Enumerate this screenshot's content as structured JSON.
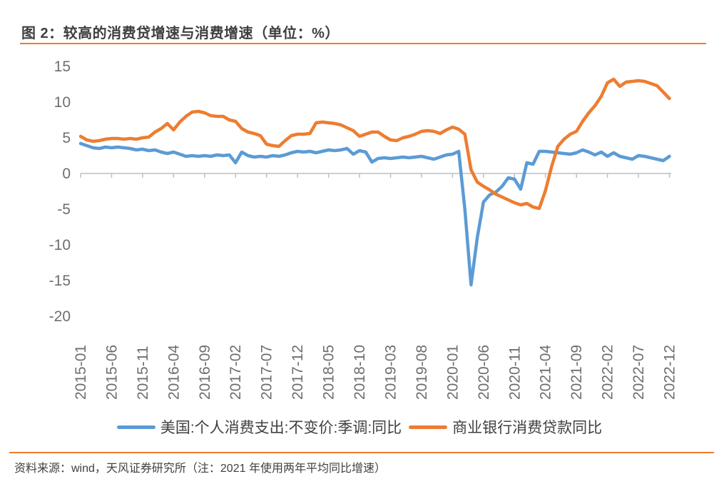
{
  "header": {
    "title": "图 2：较高的消费贷增速与消费增速（单位：%）"
  },
  "footer": {
    "source": "资料来源：wind，天风证券研究所（注：2021 年使用两年平均同比增速）"
  },
  "colors": {
    "accent_rule": "#ED7D31",
    "axis_line": "#BFBFBF",
    "tick_text": "#6E6E6E",
    "series_blue": "#5B9BD5",
    "series_orange": "#ED7D31"
  },
  "chart_data": {
    "type": "line",
    "title": "较高的消费贷增速与消费增速",
    "unit": "%",
    "grid": false,
    "legend_position": "bottom",
    "ylim": [
      -20,
      15
    ],
    "y_ticks": [
      15,
      10,
      5,
      0,
      -5,
      -10,
      -15,
      -20
    ],
    "x_tick_labels": [
      "2015-01",
      "2015-06",
      "2015-11",
      "2016-04",
      "2016-09",
      "2017-02",
      "2017-07",
      "2017-12",
      "2018-05",
      "2018-10",
      "2019-03",
      "2019-08",
      "2020-01",
      "2020-06",
      "2020-11",
      "2021-04",
      "2021-09",
      "2022-02",
      "2022-07",
      "2022-12"
    ],
    "x": [
      "2015-01",
      "2015-02",
      "2015-03",
      "2015-04",
      "2015-05",
      "2015-06",
      "2015-07",
      "2015-08",
      "2015-09",
      "2015-10",
      "2015-11",
      "2015-12",
      "2016-01",
      "2016-02",
      "2016-03",
      "2016-04",
      "2016-05",
      "2016-06",
      "2016-07",
      "2016-08",
      "2016-09",
      "2016-10",
      "2016-11",
      "2016-12",
      "2017-01",
      "2017-02",
      "2017-03",
      "2017-04",
      "2017-05",
      "2017-06",
      "2017-07",
      "2017-08",
      "2017-09",
      "2017-10",
      "2017-11",
      "2017-12",
      "2018-01",
      "2018-02",
      "2018-03",
      "2018-04",
      "2018-05",
      "2018-06",
      "2018-07",
      "2018-08",
      "2018-09",
      "2018-10",
      "2018-11",
      "2018-12",
      "2019-01",
      "2019-02",
      "2019-03",
      "2019-04",
      "2019-05",
      "2019-06",
      "2019-07",
      "2019-08",
      "2019-09",
      "2019-10",
      "2019-11",
      "2019-12",
      "2020-01",
      "2020-02",
      "2020-03",
      "2020-04",
      "2020-05",
      "2020-06",
      "2020-07",
      "2020-08",
      "2020-09",
      "2020-10",
      "2020-11",
      "2020-12",
      "2021-01",
      "2021-02",
      "2021-03",
      "2021-04",
      "2021-05",
      "2021-06",
      "2021-07",
      "2021-08",
      "2021-09",
      "2021-10",
      "2021-11",
      "2021-12",
      "2022-01",
      "2022-02",
      "2022-03",
      "2022-04",
      "2022-05",
      "2022-06",
      "2022-07",
      "2022-08",
      "2022-09",
      "2022-10",
      "2022-11",
      "2022-12"
    ],
    "series": [
      {
        "name": "美国:个人消费支出:不变价:季调:同比",
        "color": "#5B9BD5",
        "values": [
          4.2,
          3.9,
          3.6,
          3.5,
          3.7,
          3.6,
          3.7,
          3.6,
          3.5,
          3.3,
          3.4,
          3.2,
          3.3,
          3.0,
          2.8,
          3.0,
          2.7,
          2.4,
          2.5,
          2.4,
          2.5,
          2.4,
          2.6,
          2.5,
          2.6,
          1.5,
          3.0,
          2.5,
          2.3,
          2.4,
          2.3,
          2.5,
          2.4,
          2.6,
          2.9,
          3.1,
          3.0,
          3.1,
          2.9,
          3.1,
          3.3,
          3.2,
          3.3,
          3.5,
          2.7,
          3.2,
          3.0,
          1.6,
          2.1,
          2.2,
          2.1,
          2.2,
          2.3,
          2.2,
          2.3,
          2.4,
          2.2,
          2.0,
          2.3,
          2.6,
          2.7,
          3.1,
          -5.0,
          -15.6,
          -9.0,
          -4.0,
          -3.0,
          -2.6,
          -1.8,
          -0.6,
          -0.8,
          -2.2,
          1.5,
          1.3,
          3.1,
          3.1,
          3.0,
          2.9,
          2.8,
          2.7,
          2.9,
          3.3,
          3.0,
          2.6,
          3.0,
          2.4,
          2.9,
          2.4,
          2.2,
          2.0,
          2.5,
          2.4,
          2.2,
          2.0,
          1.8,
          2.4
        ]
      },
      {
        "name": "商业银行消费贷款同比",
        "color": "#ED7D31",
        "values": [
          5.2,
          4.7,
          4.5,
          4.6,
          4.8,
          4.9,
          4.9,
          4.8,
          4.9,
          4.8,
          5.0,
          5.1,
          5.8,
          6.3,
          7.0,
          6.1,
          7.2,
          8.0,
          8.6,
          8.7,
          8.5,
          8.1,
          8.0,
          8.0,
          7.5,
          7.3,
          6.3,
          5.8,
          5.6,
          5.3,
          4.1,
          3.9,
          3.8,
          4.6,
          5.3,
          5.5,
          5.5,
          5.6,
          7.1,
          7.2,
          7.1,
          7.0,
          6.8,
          6.4,
          6.0,
          5.2,
          5.5,
          5.8,
          5.8,
          5.2,
          4.7,
          4.6,
          5.0,
          5.2,
          5.5,
          5.9,
          6.0,
          5.9,
          5.6,
          6.1,
          6.5,
          6.2,
          5.5,
          0.5,
          -1.2,
          -1.8,
          -2.3,
          -2.9,
          -3.3,
          -3.7,
          -4.1,
          -4.4,
          -4.2,
          -4.7,
          -4.9,
          -2.4,
          1.0,
          3.8,
          4.8,
          5.5,
          5.9,
          7.3,
          8.5,
          9.5,
          10.8,
          12.7,
          13.2,
          12.2,
          12.8,
          12.9,
          13.0,
          12.9,
          12.6,
          12.3,
          11.4,
          10.5
        ]
      }
    ]
  }
}
